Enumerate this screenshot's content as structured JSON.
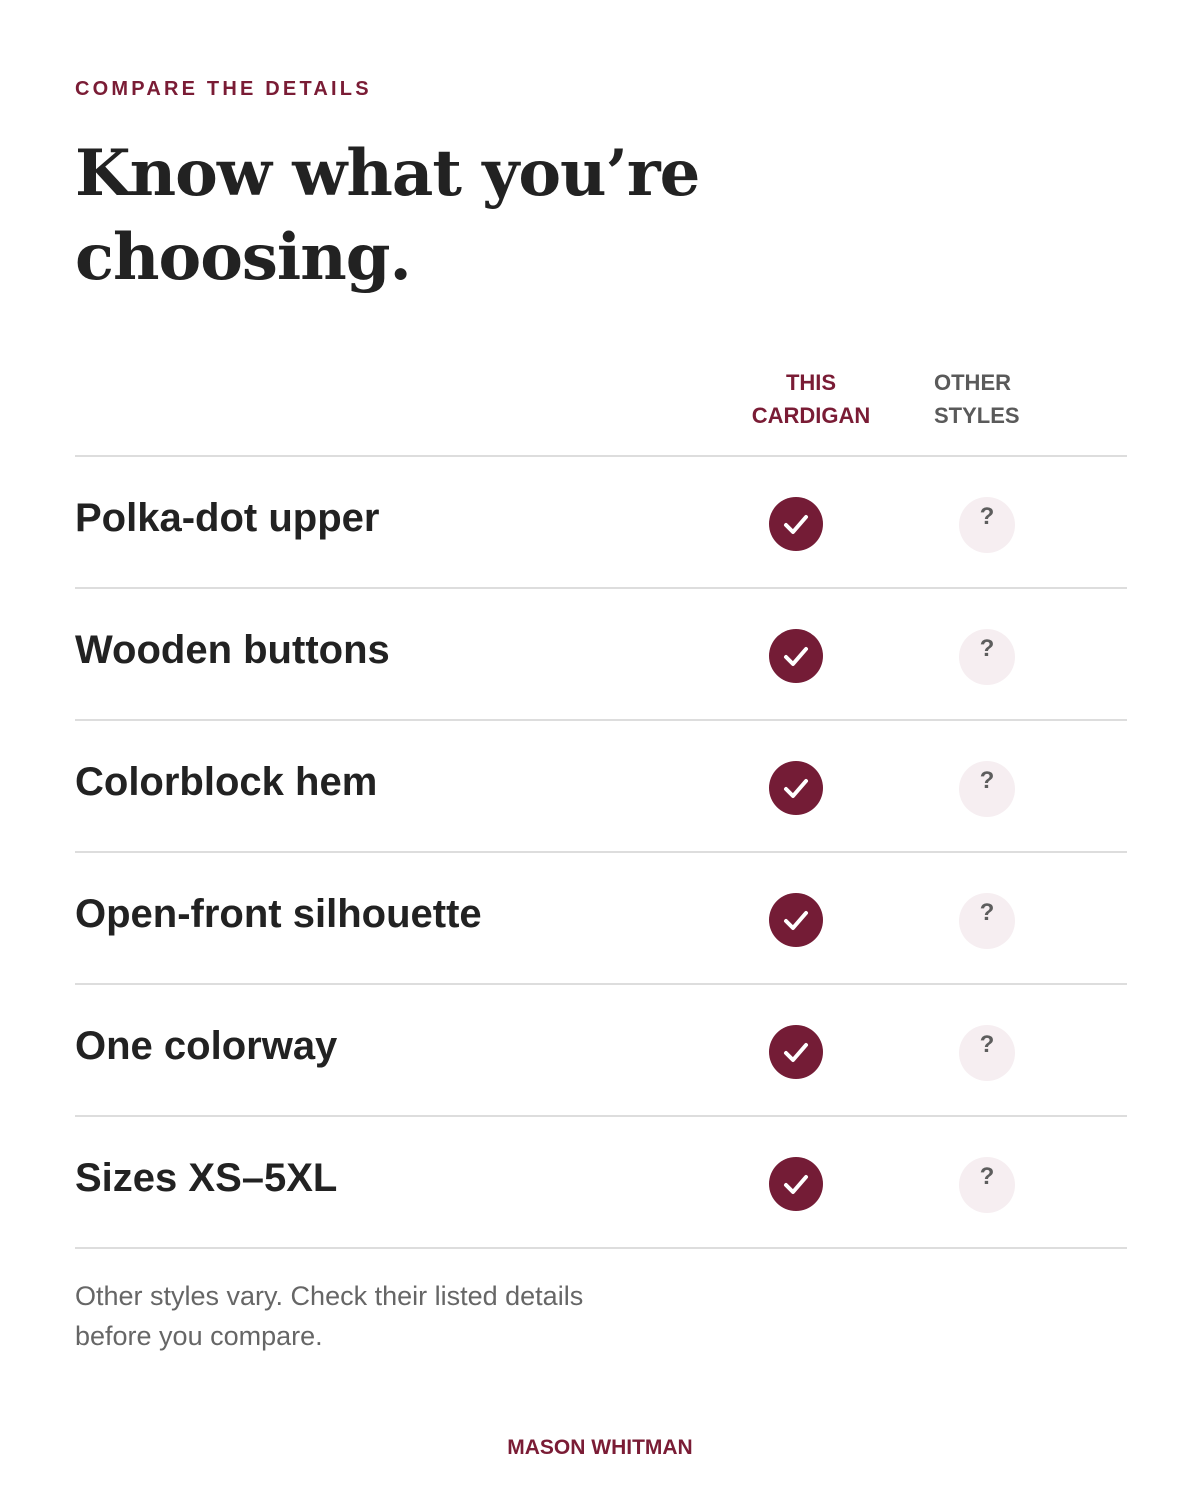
{
  "eyebrow": "COMPARE THE DETAILS",
  "headline": {
    "line1": "Know what you’re",
    "line2": "choosing."
  },
  "columns": {
    "this": {
      "line1": "THIS",
      "line2": "CARDIGAN"
    },
    "other": {
      "line1": "OTHER",
      "line2": "STYLES"
    }
  },
  "rows": [
    {
      "label": "Polka-dot upper",
      "this": "check-icon",
      "other": "?"
    },
    {
      "label": "Wooden buttons",
      "this": "check-icon",
      "other": "?"
    },
    {
      "label": "Colorblock hem",
      "this": "check-icon",
      "other": "?"
    },
    {
      "label": "Open-front silhouette",
      "this": "check-icon",
      "other": "?"
    },
    {
      "label": "One colorway",
      "this": "check-icon",
      "other": "?"
    },
    {
      "label": "Sizes XS–5XL",
      "this": "check-icon",
      "other": "?"
    }
  ],
  "note": {
    "line1": "Other styles vary. Check their listed details",
    "line2": "before you compare."
  },
  "brand": "MASON WHITMAN",
  "colors": {
    "accent": "#7a1c35",
    "check_fill": "#741c36",
    "unknown_fill": "#f6eef1",
    "divider": "#dddddd",
    "text": "#222222",
    "muted": "#666666"
  }
}
